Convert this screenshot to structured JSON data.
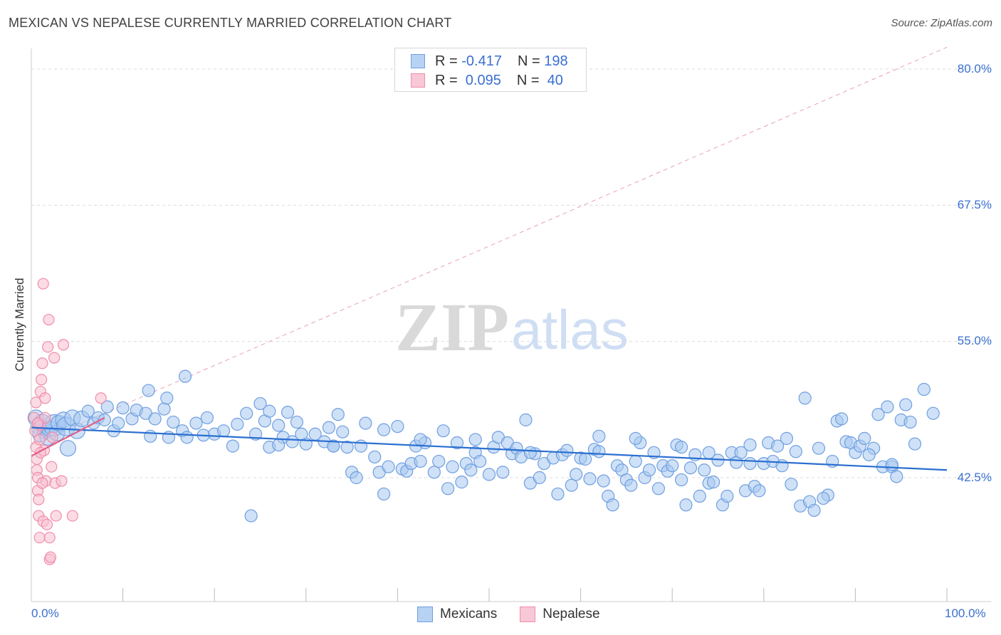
{
  "header": {
    "title": "MEXICAN VS NEPALESE CURRENTLY MARRIED CORRELATION CHART",
    "source": "Source: ZipAtlas.com"
  },
  "watermark": {
    "zip": "ZIP",
    "atlas": "atlas"
  },
  "legend": {
    "rows": [
      {
        "r_label": "R = ",
        "r_value": "-0.417",
        "n_label": "N = ",
        "n_value": "198"
      },
      {
        "r_label": "R = ",
        "r_value": " 0.095",
        "n_label": "N = ",
        "n_value": " 40"
      }
    ]
  },
  "bottom_legend": {
    "mexicans": "Mexicans",
    "nepalese": "Nepalese"
  },
  "colors": {
    "mexicans_fill": "#a8c8f0",
    "mexicans_stroke": "#6f9fe0",
    "mexicans_line": "#2a6fd0",
    "nepalese_fill": "#f8c0d0",
    "nepalese_stroke": "#f08cab",
    "nepalese_line": "#e0608a",
    "diag_line": "#e8a0b4",
    "grid": "#dcdcdc",
    "label_blue": "#3a6fd0"
  },
  "chart_data": {
    "type": "scatter",
    "title": "MEXICAN VS NEPALESE CURRENTLY MARRIED CORRELATION CHART",
    "xlabel": "",
    "ylabel": "Currently Married",
    "xlim": [
      0,
      100
    ],
    "ylim": [
      31.0,
      81.5
    ],
    "x_tick_labels": [
      "0.0%",
      "100.0%"
    ],
    "y_ticks": [
      42.5,
      55.0,
      67.5,
      80.0
    ],
    "y_tick_labels": [
      "42.5%",
      "55.0%",
      "67.5%",
      "80.0%"
    ],
    "x_minor_ticks": [
      10,
      20,
      30,
      40,
      50,
      60,
      70,
      80,
      90,
      100
    ],
    "series": [
      {
        "name": "Mexicans",
        "R": -0.417,
        "N": 198,
        "trend": {
          "x": [
            0,
            100
          ],
          "y": [
            47.1,
            43.2
          ]
        },
        "points": [
          [
            0.5,
            48.0
          ],
          [
            0.8,
            47.2
          ],
          [
            1.0,
            46.5
          ],
          [
            1.2,
            47.6
          ],
          [
            1.5,
            46.8
          ],
          [
            1.8,
            46.2
          ],
          [
            2.0,
            47.0
          ],
          [
            2.5,
            47.3
          ],
          [
            2.8,
            46.6
          ],
          [
            3.0,
            47.5
          ],
          [
            3.5,
            47.8
          ],
          [
            3.8,
            47.2
          ],
          [
            4.0,
            45.2
          ],
          [
            4.5,
            48.0
          ],
          [
            5.0,
            46.8
          ],
          [
            5.5,
            47.9
          ],
          [
            6.2,
            48.6
          ],
          [
            6.8,
            47.5
          ],
          [
            7.3,
            48.0
          ],
          [
            8.0,
            47.8
          ],
          [
            8.3,
            49.0
          ],
          [
            9.0,
            46.8
          ],
          [
            9.5,
            47.5
          ],
          [
            10.0,
            48.9
          ],
          [
            11.0,
            47.9
          ],
          [
            11.5,
            48.7
          ],
          [
            12.5,
            48.4
          ],
          [
            12.8,
            50.5
          ],
          [
            13.0,
            46.3
          ],
          [
            13.5,
            47.9
          ],
          [
            14.5,
            48.8
          ],
          [
            14.8,
            49.8
          ],
          [
            15.0,
            46.2
          ],
          [
            15.5,
            47.6
          ],
          [
            16.5,
            46.8
          ],
          [
            16.8,
            51.8
          ],
          [
            17.0,
            46.2
          ],
          [
            18.0,
            47.5
          ],
          [
            18.8,
            46.4
          ],
          [
            19.2,
            48.0
          ],
          [
            20.0,
            46.5
          ],
          [
            21.0,
            46.8
          ],
          [
            22.0,
            45.4
          ],
          [
            22.5,
            47.4
          ],
          [
            23.5,
            48.4
          ],
          [
            24.0,
            39.0
          ],
          [
            24.5,
            46.5
          ],
          [
            25.0,
            49.3
          ],
          [
            25.5,
            47.7
          ],
          [
            26.0,
            48.6
          ],
          [
            27.0,
            47.3
          ],
          [
            27.5,
            46.2
          ],
          [
            28.0,
            48.5
          ],
          [
            28.5,
            45.8
          ],
          [
            29.0,
            47.6
          ],
          [
            30.0,
            45.6
          ],
          [
            31.0,
            46.5
          ],
          [
            32.0,
            45.8
          ],
          [
            32.5,
            47.1
          ],
          [
            33.0,
            45.4
          ],
          [
            33.5,
            48.3
          ],
          [
            34.0,
            46.7
          ],
          [
            35.0,
            43.0
          ],
          [
            35.5,
            42.5
          ],
          [
            36.0,
            45.4
          ],
          [
            36.5,
            47.5
          ],
          [
            37.5,
            44.4
          ],
          [
            38.0,
            43.0
          ],
          [
            38.5,
            41.0
          ],
          [
            39.0,
            43.5
          ],
          [
            40.0,
            47.2
          ],
          [
            40.5,
            43.3
          ],
          [
            41.0,
            43.1
          ],
          [
            41.5,
            43.8
          ],
          [
            42.0,
            45.4
          ],
          [
            42.5,
            44.0
          ],
          [
            43.0,
            45.7
          ],
          [
            44.0,
            43.0
          ],
          [
            44.5,
            44.0
          ],
          [
            45.0,
            46.8
          ],
          [
            45.5,
            41.5
          ],
          [
            46.0,
            43.5
          ],
          [
            46.5,
            45.7
          ],
          [
            47.0,
            42.1
          ],
          [
            47.5,
            43.8
          ],
          [
            48.0,
            43.2
          ],
          [
            48.5,
            44.8
          ],
          [
            49.0,
            44.0
          ],
          [
            50.0,
            42.8
          ],
          [
            50.5,
            45.3
          ],
          [
            51.0,
            46.2
          ],
          [
            51.5,
            43.0
          ],
          [
            52.0,
            45.7
          ],
          [
            52.5,
            44.7
          ],
          [
            53.0,
            45.2
          ],
          [
            53.5,
            44.4
          ],
          [
            54.0,
            47.8
          ],
          [
            54.5,
            42.0
          ],
          [
            55.0,
            44.7
          ],
          [
            55.5,
            42.5
          ],
          [
            56.0,
            43.8
          ],
          [
            57.0,
            44.3
          ],
          [
            57.5,
            41.0
          ],
          [
            58.0,
            44.6
          ],
          [
            58.5,
            45.0
          ],
          [
            59.0,
            41.8
          ],
          [
            59.5,
            42.8
          ],
          [
            60.0,
            44.3
          ],
          [
            60.5,
            44.2
          ],
          [
            61.0,
            42.4
          ],
          [
            61.5,
            45.1
          ],
          [
            62.0,
            44.9
          ],
          [
            62.5,
            42.2
          ],
          [
            63.0,
            40.8
          ],
          [
            63.5,
            40.0
          ],
          [
            64.0,
            43.6
          ],
          [
            64.5,
            43.2
          ],
          [
            65.0,
            42.3
          ],
          [
            65.5,
            41.8
          ],
          [
            66.0,
            44.0
          ],
          [
            66.5,
            45.7
          ],
          [
            67.0,
            42.5
          ],
          [
            67.5,
            43.2
          ],
          [
            68.0,
            44.8
          ],
          [
            68.5,
            41.5
          ],
          [
            69.0,
            43.6
          ],
          [
            69.5,
            43.1
          ],
          [
            70.0,
            43.6
          ],
          [
            70.5,
            45.5
          ],
          [
            71.0,
            42.3
          ],
          [
            71.5,
            40.0
          ],
          [
            72.0,
            43.4
          ],
          [
            72.5,
            44.6
          ],
          [
            73.0,
            40.8
          ],
          [
            73.5,
            43.2
          ],
          [
            74.0,
            42.0
          ],
          [
            74.5,
            42.1
          ],
          [
            75.0,
            44.1
          ],
          [
            75.5,
            40.0
          ],
          [
            76.0,
            40.8
          ],
          [
            76.5,
            44.8
          ],
          [
            77.0,
            43.9
          ],
          [
            77.5,
            44.8
          ],
          [
            78.0,
            41.3
          ],
          [
            78.5,
            43.8
          ],
          [
            79.0,
            41.7
          ],
          [
            79.5,
            41.3
          ],
          [
            80.0,
            43.8
          ],
          [
            80.5,
            45.7
          ],
          [
            81.0,
            44.0
          ],
          [
            81.5,
            45.4
          ],
          [
            82.0,
            43.6
          ],
          [
            82.5,
            46.1
          ],
          [
            83.0,
            41.9
          ],
          [
            84.0,
            39.9
          ],
          [
            84.5,
            49.8
          ],
          [
            85.0,
            40.3
          ],
          [
            85.5,
            39.5
          ],
          [
            86.0,
            45.2
          ],
          [
            87.0,
            40.9
          ],
          [
            87.5,
            44.0
          ],
          [
            88.0,
            47.7
          ],
          [
            88.5,
            47.9
          ],
          [
            89.0,
            45.8
          ],
          [
            89.5,
            45.7
          ],
          [
            90.0,
            44.8
          ],
          [
            90.5,
            45.4
          ],
          [
            91.0,
            46.1
          ],
          [
            92.0,
            45.2
          ],
          [
            92.5,
            48.3
          ],
          [
            93.0,
            43.5
          ],
          [
            93.5,
            49.0
          ],
          [
            94.0,
            43.5
          ],
          [
            94.5,
            42.6
          ],
          [
            95.0,
            47.8
          ],
          [
            95.5,
            49.2
          ],
          [
            96.0,
            47.6
          ],
          [
            96.5,
            45.6
          ],
          [
            97.5,
            50.6
          ],
          [
            98.5,
            48.4
          ],
          [
            26.0,
            45.3
          ],
          [
            34.5,
            45.3
          ],
          [
            38.5,
            46.9
          ],
          [
            29.5,
            46.5
          ],
          [
            42.5,
            46.0
          ],
          [
            48.5,
            46.0
          ],
          [
            54.5,
            44.8
          ],
          [
            62.0,
            46.3
          ],
          [
            66.0,
            46.1
          ],
          [
            71.0,
            45.3
          ],
          [
            74.0,
            44.8
          ],
          [
            78.5,
            45.5
          ],
          [
            83.5,
            44.9
          ],
          [
            27.0,
            45.5
          ],
          [
            33.0,
            45.4
          ],
          [
            86.5,
            40.6
          ],
          [
            91.5,
            44.6
          ],
          [
            94.0,
            43.7
          ]
        ]
      },
      {
        "name": "Nepalese",
        "R": 0.095,
        "N": 40,
        "trend": {
          "x": [
            0,
            8
          ],
          "y": [
            44.5,
            48.0
          ]
        },
        "points": [
          [
            0.3,
            48.0
          ],
          [
            0.4,
            46.8
          ],
          [
            0.5,
            49.4
          ],
          [
            0.5,
            45.3
          ],
          [
            0.6,
            44.2
          ],
          [
            0.6,
            43.2
          ],
          [
            0.7,
            42.5
          ],
          [
            0.7,
            41.3
          ],
          [
            0.8,
            40.5
          ],
          [
            0.8,
            39.0
          ],
          [
            0.9,
            37.0
          ],
          [
            0.9,
            46.0
          ],
          [
            1.0,
            47.3
          ],
          [
            1.0,
            50.4
          ],
          [
            1.1,
            51.5
          ],
          [
            1.2,
            53.0
          ],
          [
            1.3,
            38.5
          ],
          [
            1.3,
            60.3
          ],
          [
            1.4,
            45.0
          ],
          [
            1.5,
            48.0
          ],
          [
            1.5,
            49.8
          ],
          [
            1.6,
            42.2
          ],
          [
            1.7,
            38.2
          ],
          [
            1.8,
            54.5
          ],
          [
            1.9,
            57.0
          ],
          [
            2.0,
            35.0
          ],
          [
            2.0,
            37.0
          ],
          [
            2.1,
            35.2
          ],
          [
            2.2,
            43.5
          ],
          [
            2.3,
            46.2
          ],
          [
            2.5,
            53.5
          ],
          [
            2.6,
            42.0
          ],
          [
            2.7,
            39.0
          ],
          [
            3.3,
            42.2
          ],
          [
            3.5,
            54.7
          ],
          [
            4.5,
            39.0
          ],
          [
            7.6,
            49.8
          ],
          [
            0.7,
            47.5
          ],
          [
            1.0,
            44.8
          ],
          [
            1.2,
            42.0
          ]
        ]
      }
    ],
    "reference_line": {
      "style": "dashed",
      "x": [
        0,
        100
      ],
      "y": [
        45.5,
        82.0
      ]
    }
  }
}
